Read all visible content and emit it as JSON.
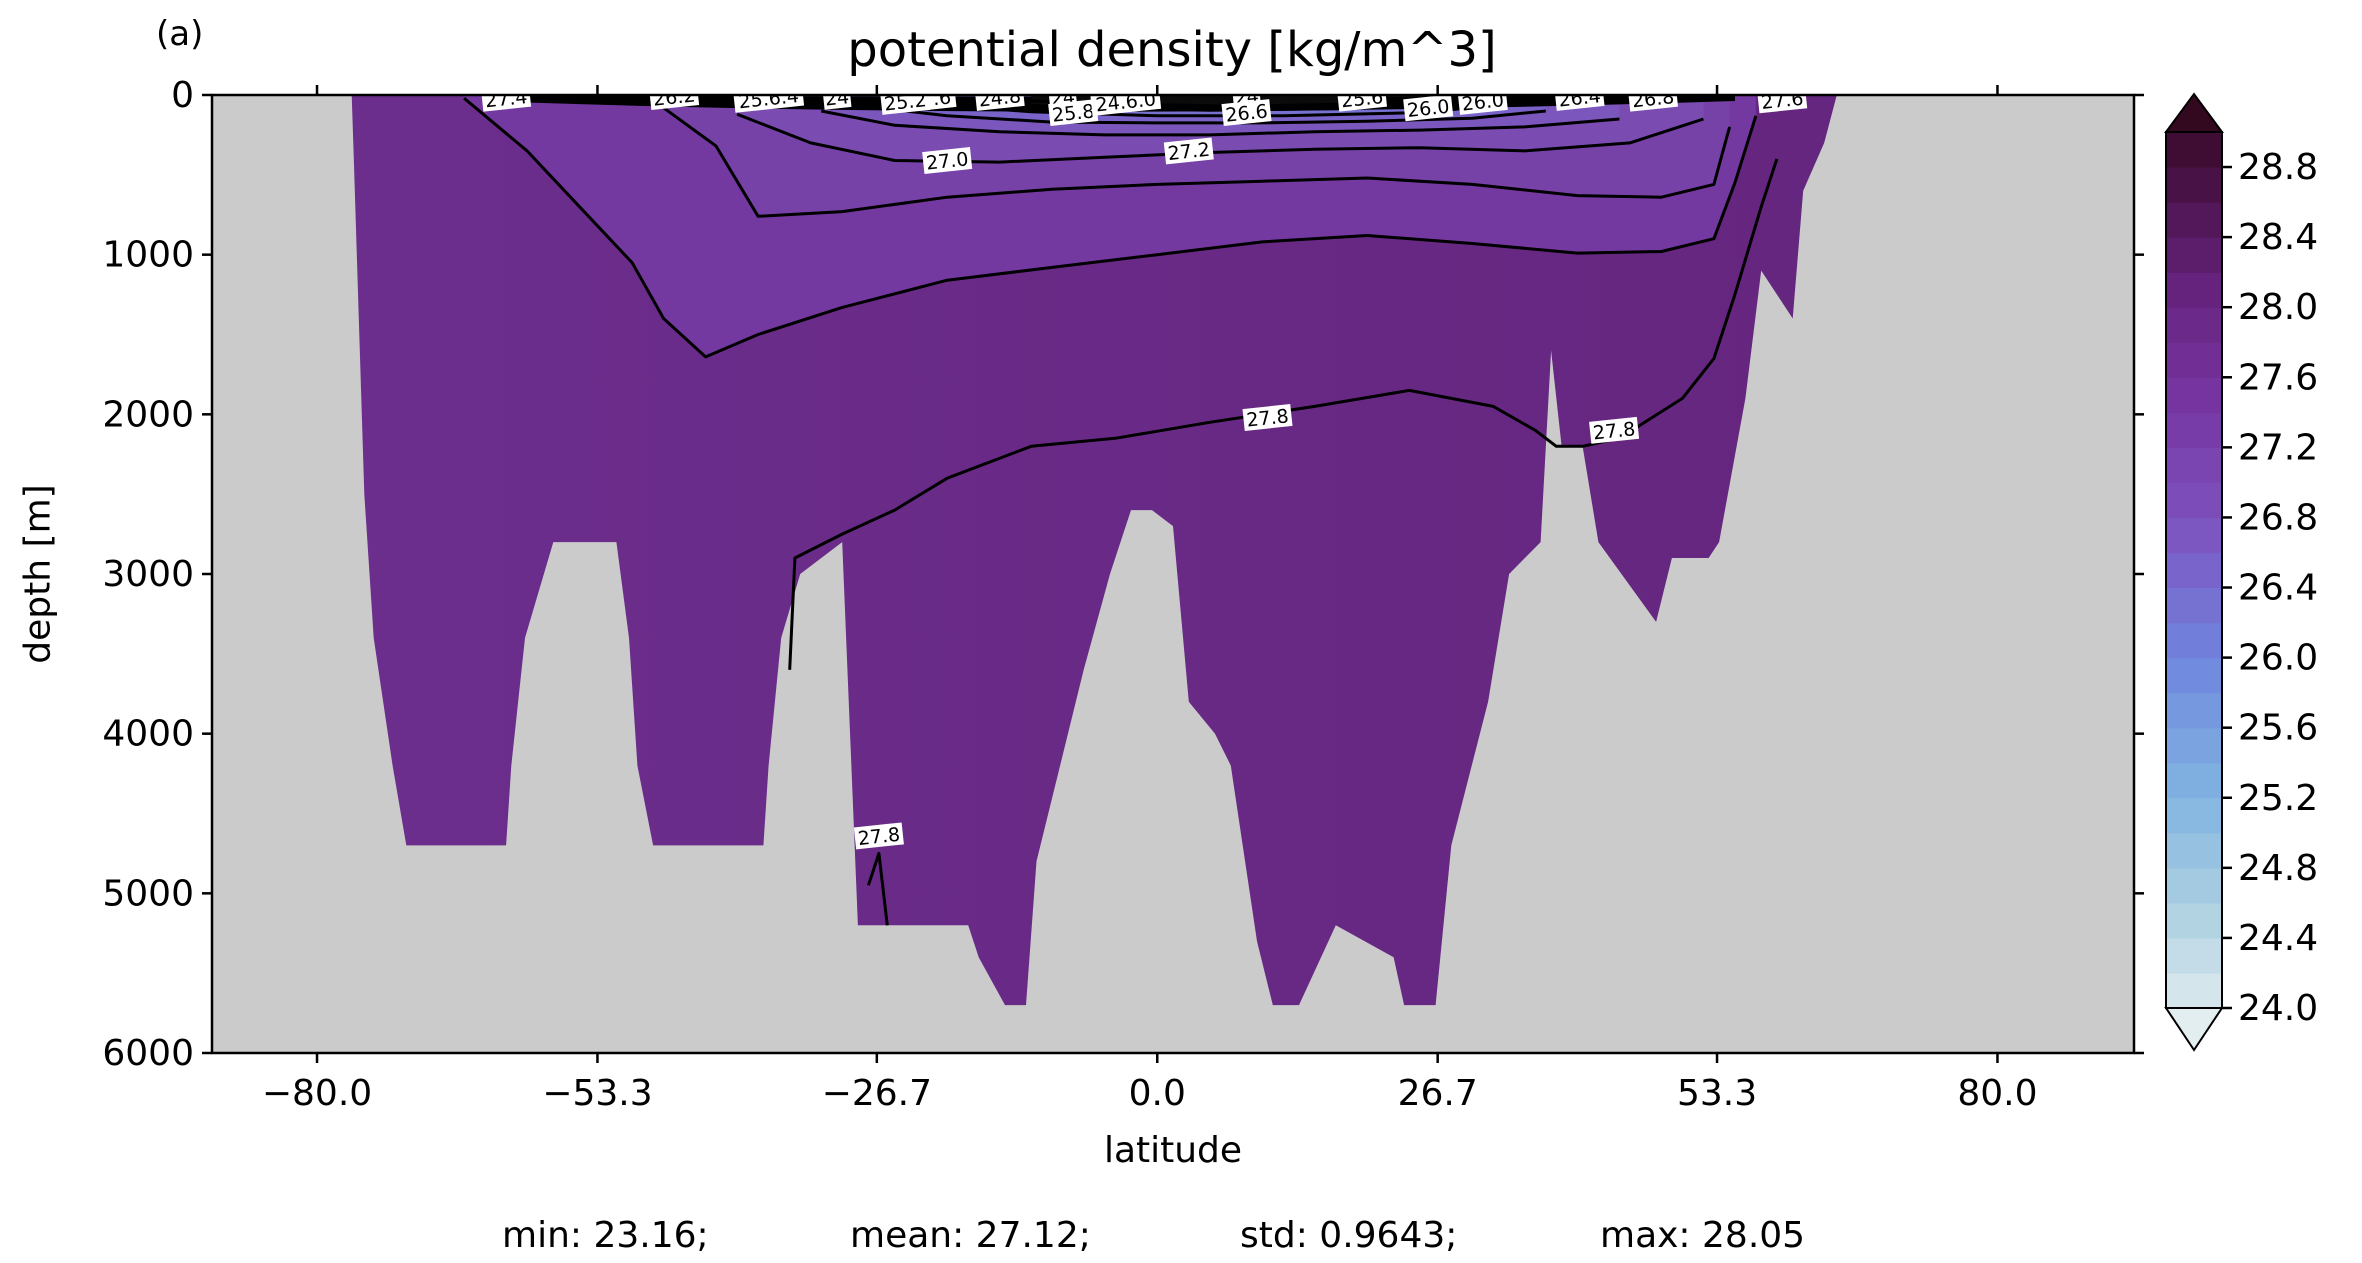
{
  "panel_label": "(a)",
  "stats": {
    "min": "min: 23.16;",
    "mean": "mean: 27.12;",
    "std": "std: 0.9643;",
    "max": "max: 28.05"
  },
  "colors": {
    "land": "#cbcbcb",
    "contour": "#000000",
    "colormap_low": "#dde9ee",
    "colormap_mid": "#6f86df",
    "colormap_high": "#3a0a2a"
  },
  "chart_data": {
    "type": "contour-section",
    "title": "potential density [kg/m^3]",
    "xlabel": "latitude",
    "ylabel": "depth [m]",
    "xlim": [
      -90,
      93
    ],
    "ylim": [
      6000,
      0
    ],
    "xticks": [
      -80.0,
      -53.3,
      -26.7,
      0.0,
      26.7,
      53.3,
      80.0
    ],
    "xtick_labels": [
      "−80.0",
      "−53.3",
      "−26.7",
      "0.0",
      "26.7",
      "53.3",
      "80.0"
    ],
    "yticks": [
      0,
      1000,
      2000,
      3000,
      4000,
      5000,
      6000
    ],
    "ytick_labels": [
      "0",
      "1000",
      "2000",
      "3000",
      "4000",
      "5000",
      "6000"
    ],
    "colorbar": {
      "min": 24.0,
      "max": 29.0,
      "step": 0.2,
      "extend": "both",
      "ticks": [
        24.0,
        24.4,
        24.8,
        25.2,
        25.6,
        26.0,
        26.4,
        26.8,
        27.2,
        27.6,
        28.0,
        28.4,
        28.8
      ],
      "tick_labels": [
        "24.0",
        "24.4",
        "24.8",
        "25.2",
        "25.6",
        "26.0",
        "26.4",
        "26.8",
        "27.2",
        "27.6",
        "28.0",
        "28.4",
        "28.8"
      ]
    },
    "ocean_mask": [
      [
        -76.5,
        400
      ],
      [
        -75.5,
        2500
      ],
      [
        -74.6,
        3400
      ],
      [
        -72.8,
        4200
      ],
      [
        -71.5,
        4700
      ],
      [
        -62,
        4700
      ],
      [
        -61.5,
        4200
      ],
      [
        -60.2,
        3400
      ],
      [
        -57.5,
        2800
      ],
      [
        -51.5,
        2800
      ],
      [
        -50.3,
        3400
      ],
      [
        -49.5,
        4200
      ],
      [
        -48,
        4700
      ],
      [
        -37.5,
        4700
      ],
      [
        -37,
        4200
      ],
      [
        -35.8,
        3400
      ],
      [
        -34,
        3000
      ],
      [
        -30,
        2800
      ],
      [
        -28.5,
        5200
      ],
      [
        -18,
        5200
      ],
      [
        -17,
        5400
      ],
      [
        -14.5,
        5700
      ],
      [
        -12.5,
        5700
      ],
      [
        -11.5,
        4800
      ],
      [
        -7,
        3600
      ],
      [
        -4.5,
        3000
      ],
      [
        -2.5,
        2600
      ],
      [
        -0.5,
        2600
      ],
      [
        1.5,
        2700
      ],
      [
        3,
        3800
      ],
      [
        5.5,
        4000
      ],
      [
        7,
        4200
      ],
      [
        9.5,
        5300
      ],
      [
        11,
        5700
      ],
      [
        13.5,
        5700
      ],
      [
        17,
        5200
      ],
      [
        22.5,
        5400
      ],
      [
        23.5,
        5700
      ],
      [
        26.5,
        5700
      ],
      [
        28,
        4700
      ],
      [
        31.5,
        3800
      ],
      [
        33.5,
        3000
      ],
      [
        36.5,
        2800
      ],
      [
        37.5,
        1600
      ],
      [
        38.5,
        2200
      ],
      [
        40.5,
        2200
      ],
      [
        42,
        2800
      ],
      [
        47.5,
        3300
      ],
      [
        49,
        2900
      ],
      [
        52.5,
        2900
      ],
      [
        53.5,
        2800
      ],
      [
        56,
        1900
      ],
      [
        57.5,
        1100
      ],
      [
        60.5,
        1400
      ],
      [
        61.5,
        600
      ],
      [
        63.5,
        300
      ],
      [
        64.7,
        0
      ],
      [
        -76.7,
        0
      ]
    ],
    "contours": [
      {
        "level": 27.8,
        "points": [
          [
            -35,
            3600
          ],
          [
            -34.5,
            2900
          ],
          [
            -30,
            2750
          ],
          [
            -25,
            2600
          ],
          [
            -20,
            2400
          ],
          [
            -12,
            2200
          ],
          [
            -4,
            2150
          ],
          [
            5,
            2050
          ],
          [
            15,
            1950
          ],
          [
            24,
            1850
          ],
          [
            32,
            1950
          ],
          [
            36,
            2100
          ],
          [
            38,
            2200
          ],
          [
            40.5,
            2200
          ],
          [
            44,
            2150
          ],
          [
            50,
            1900
          ],
          [
            53,
            1650
          ],
          [
            55,
            1250
          ],
          [
            57.5,
            700
          ],
          [
            59,
            400
          ]
        ]
      },
      {
        "level": 27.8,
        "points": [
          [
            -27.5,
            4950
          ],
          [
            -26.5,
            4750
          ],
          [
            -25.7,
            5200
          ]
        ]
      },
      {
        "level": 27.6,
        "points": [
          [
            -66,
            20
          ],
          [
            -60,
            350
          ],
          [
            -55,
            700
          ],
          [
            -50,
            1050
          ],
          [
            -47,
            1400
          ],
          [
            -43,
            1640
          ],
          [
            -38,
            1500
          ],
          [
            -30,
            1330
          ],
          [
            -20,
            1160
          ],
          [
            -10,
            1080
          ],
          [
            0,
            1000
          ],
          [
            10,
            920
          ],
          [
            20,
            880
          ],
          [
            30,
            930
          ],
          [
            40,
            990
          ],
          [
            48,
            980
          ],
          [
            53,
            900
          ],
          [
            55,
            550
          ],
          [
            57,
            130
          ]
        ]
      },
      {
        "level": 27.4,
        "points": [
          [
            -47,
            80
          ],
          [
            -42,
            320
          ],
          [
            -38,
            760
          ],
          [
            -30,
            730
          ],
          [
            -20,
            640
          ],
          [
            -10,
            590
          ],
          [
            0,
            560
          ],
          [
            10,
            540
          ],
          [
            20,
            520
          ],
          [
            30,
            560
          ],
          [
            40,
            630
          ],
          [
            48,
            640
          ],
          [
            53,
            560
          ],
          [
            54.5,
            200
          ]
        ]
      },
      {
        "level": 27.2,
        "points": [
          [
            -40,
            120
          ],
          [
            -33,
            300
          ],
          [
            -25,
            410
          ],
          [
            -15,
            420
          ],
          [
            -5,
            390
          ],
          [
            5,
            360
          ],
          [
            15,
            340
          ],
          [
            25,
            330
          ],
          [
            35,
            350
          ],
          [
            45,
            300
          ],
          [
            52,
            150
          ]
        ]
      },
      {
        "level": 27.0,
        "points": [
          [
            -32,
            100
          ],
          [
            -25,
            190
          ],
          [
            -15,
            230
          ],
          [
            -5,
            250
          ],
          [
            5,
            250
          ],
          [
            15,
            230
          ],
          [
            25,
            220
          ],
          [
            35,
            200
          ],
          [
            44,
            150
          ]
        ]
      },
      {
        "level": 26.8,
        "points": [
          [
            -28,
            70
          ],
          [
            -20,
            130
          ],
          [
            -10,
            170
          ],
          [
            0,
            175
          ],
          [
            10,
            175
          ],
          [
            20,
            165
          ],
          [
            30,
            145
          ],
          [
            37,
            100
          ]
        ]
      },
      {
        "level": 26.6,
        "points": [
          [
            -22,
            55
          ],
          [
            -12,
            105
          ],
          [
            0,
            130
          ],
          [
            12,
            130
          ],
          [
            25,
            110
          ],
          [
            33,
            60
          ]
        ]
      },
      {
        "level": 26.4,
        "points": [
          [
            -18,
            40
          ],
          [
            -8,
            80
          ],
          [
            5,
            95
          ],
          [
            18,
            85
          ],
          [
            28,
            45
          ]
        ]
      },
      {
        "level": 26.2,
        "points": [
          [
            -15,
            30
          ],
          [
            -5,
            55
          ],
          [
            8,
            70
          ],
          [
            20,
            55
          ],
          [
            26,
            30
          ]
        ]
      }
    ],
    "contour_labels": [
      {
        "text": "27.4",
        "x": -62,
        "y": 20
      },
      {
        "text": "26.2",
        "x": -46,
        "y": 10
      },
      {
        "text": "25.6.4",
        "x": -37,
        "y": 20
      },
      {
        "text": "24",
        "x": -30.5,
        "y": 15
      },
      {
        "text": "25.2",
        "x": -24,
        "y": 40
      },
      {
        "text": ".6",
        "x": -20.5,
        "y": 15
      },
      {
        "text": "24.8",
        "x": -15,
        "y": 15
      },
      {
        "text": "24",
        "x": -9,
        "y": 15
      },
      {
        "text": "25.8",
        "x": -8,
        "y": 110
      },
      {
        "text": "24.6.0",
        "x": -3,
        "y": 40
      },
      {
        "text": "24",
        "x": 8.5,
        "y": 10
      },
      {
        "text": "26.6",
        "x": 8.5,
        "y": 110
      },
      {
        "text": "25.6",
        "x": 19.5,
        "y": 20
      },
      {
        "text": "26.0",
        "x": 25.8,
        "y": 80
      },
      {
        "text": "26.0",
        "x": 31,
        "y": 40
      },
      {
        "text": "26.4",
        "x": 40.2,
        "y": 15
      },
      {
        "text": "26.8",
        "x": 47.2,
        "y": 20
      },
      {
        "text": "27.6",
        "x": 59.5,
        "y": 30
      },
      {
        "text": "27.0",
        "x": -20,
        "y": 410
      },
      {
        "text": "27.2",
        "x": 3,
        "y": 350
      },
      {
        "text": "27.8",
        "x": 10.5,
        "y": 2020
      },
      {
        "text": "27.8",
        "x": 43.5,
        "y": 2100
      },
      {
        "text": "27.8",
        "x": -26.5,
        "y": 4640
      }
    ]
  }
}
